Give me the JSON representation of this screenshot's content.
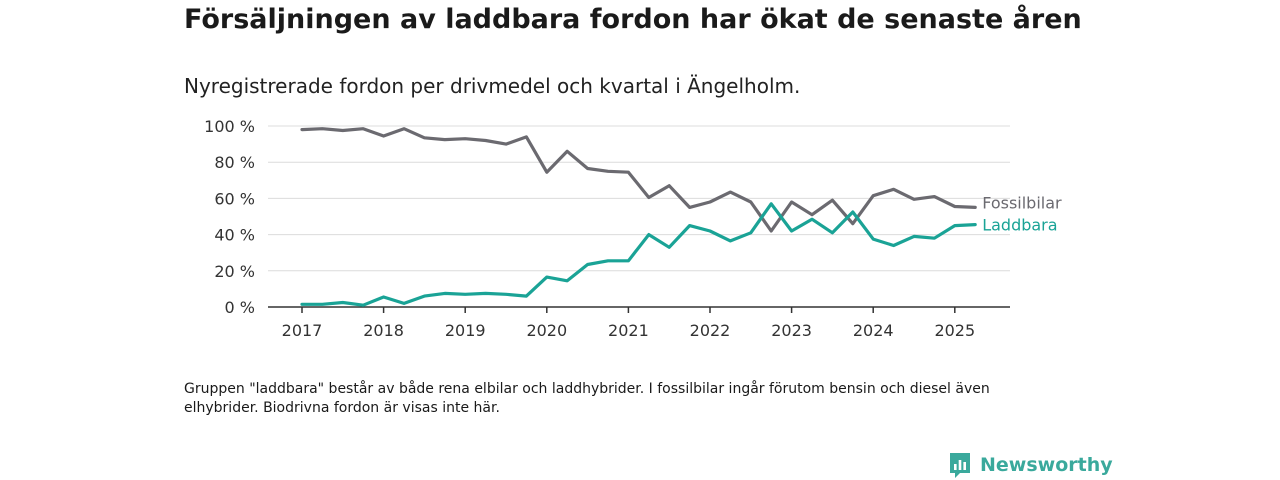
{
  "header": {
    "title": "Försäljningen av laddbara fordon har ökat de senaste åren",
    "subtitle": "Nyregistrerade fordon per drivmedel och kvartal i Ängelholm."
  },
  "footer": {
    "note": "Gruppen \"laddbara\" består av både rena elbilar och laddhybrider. I fossilbilar ingår förutom bensin och diesel även elhybrider. Biodrivna fordon är visas inte här.",
    "brand": "Newsworthy"
  },
  "colors": {
    "fossil": "#6b6a70",
    "laddbara": "#1aa396",
    "grid": "#dcdcdc",
    "axis": "#333333",
    "brand": "#3aa99c"
  },
  "chart_data": {
    "type": "line",
    "x_unit": "quarter",
    "x_start_year": 2017,
    "x": [
      "2017Q1",
      "2017Q2",
      "2017Q3",
      "2017Q4",
      "2018Q1",
      "2018Q2",
      "2018Q3",
      "2018Q4",
      "2019Q1",
      "2019Q2",
      "2019Q3",
      "2019Q4",
      "2020Q1",
      "2020Q2",
      "2020Q3",
      "2020Q4",
      "2021Q1",
      "2021Q2",
      "2021Q3",
      "2021Q4",
      "2022Q1",
      "2022Q2",
      "2022Q3",
      "2022Q4",
      "2023Q1",
      "2023Q2",
      "2023Q3",
      "2023Q4",
      "2024Q1",
      "2024Q2",
      "2024Q3",
      "2024Q4",
      "2025Q1",
      "2025Q2"
    ],
    "x_ticks": [
      "2017",
      "2018",
      "2019",
      "2020",
      "2021",
      "2022",
      "2023",
      "2024",
      "2025"
    ],
    "y_ticks": [
      "0 %",
      "20 %",
      "40 %",
      "60 %",
      "80 %",
      "100 %"
    ],
    "ylim": [
      0,
      100
    ],
    "grid": true,
    "legend": "inline-right",
    "series": [
      {
        "name": "Fossilbilar",
        "color": "#6b6a70",
        "values": [
          98,
          98.5,
          97.5,
          98.5,
          94.5,
          98.5,
          93.5,
          92.5,
          93,
          92,
          90,
          94,
          74.5,
          86,
          76.5,
          75,
          74.5,
          60.5,
          67,
          55,
          58,
          63.5,
          58,
          42,
          58,
          51,
          59,
          46,
          61.5,
          65,
          59.5,
          61,
          55.5,
          55
        ]
      },
      {
        "name": "Laddbara",
        "color": "#1aa396",
        "values": [
          1.5,
          1.5,
          2.5,
          1,
          5.5,
          2,
          6,
          7.5,
          7,
          7.5,
          7,
          6,
          16.5,
          14.5,
          23.5,
          25.5,
          25.5,
          40,
          33,
          45,
          42,
          36.5,
          41,
          57,
          42,
          48.5,
          41,
          52.5,
          37.5,
          34,
          39,
          38,
          45,
          45.5
        ]
      }
    ]
  }
}
